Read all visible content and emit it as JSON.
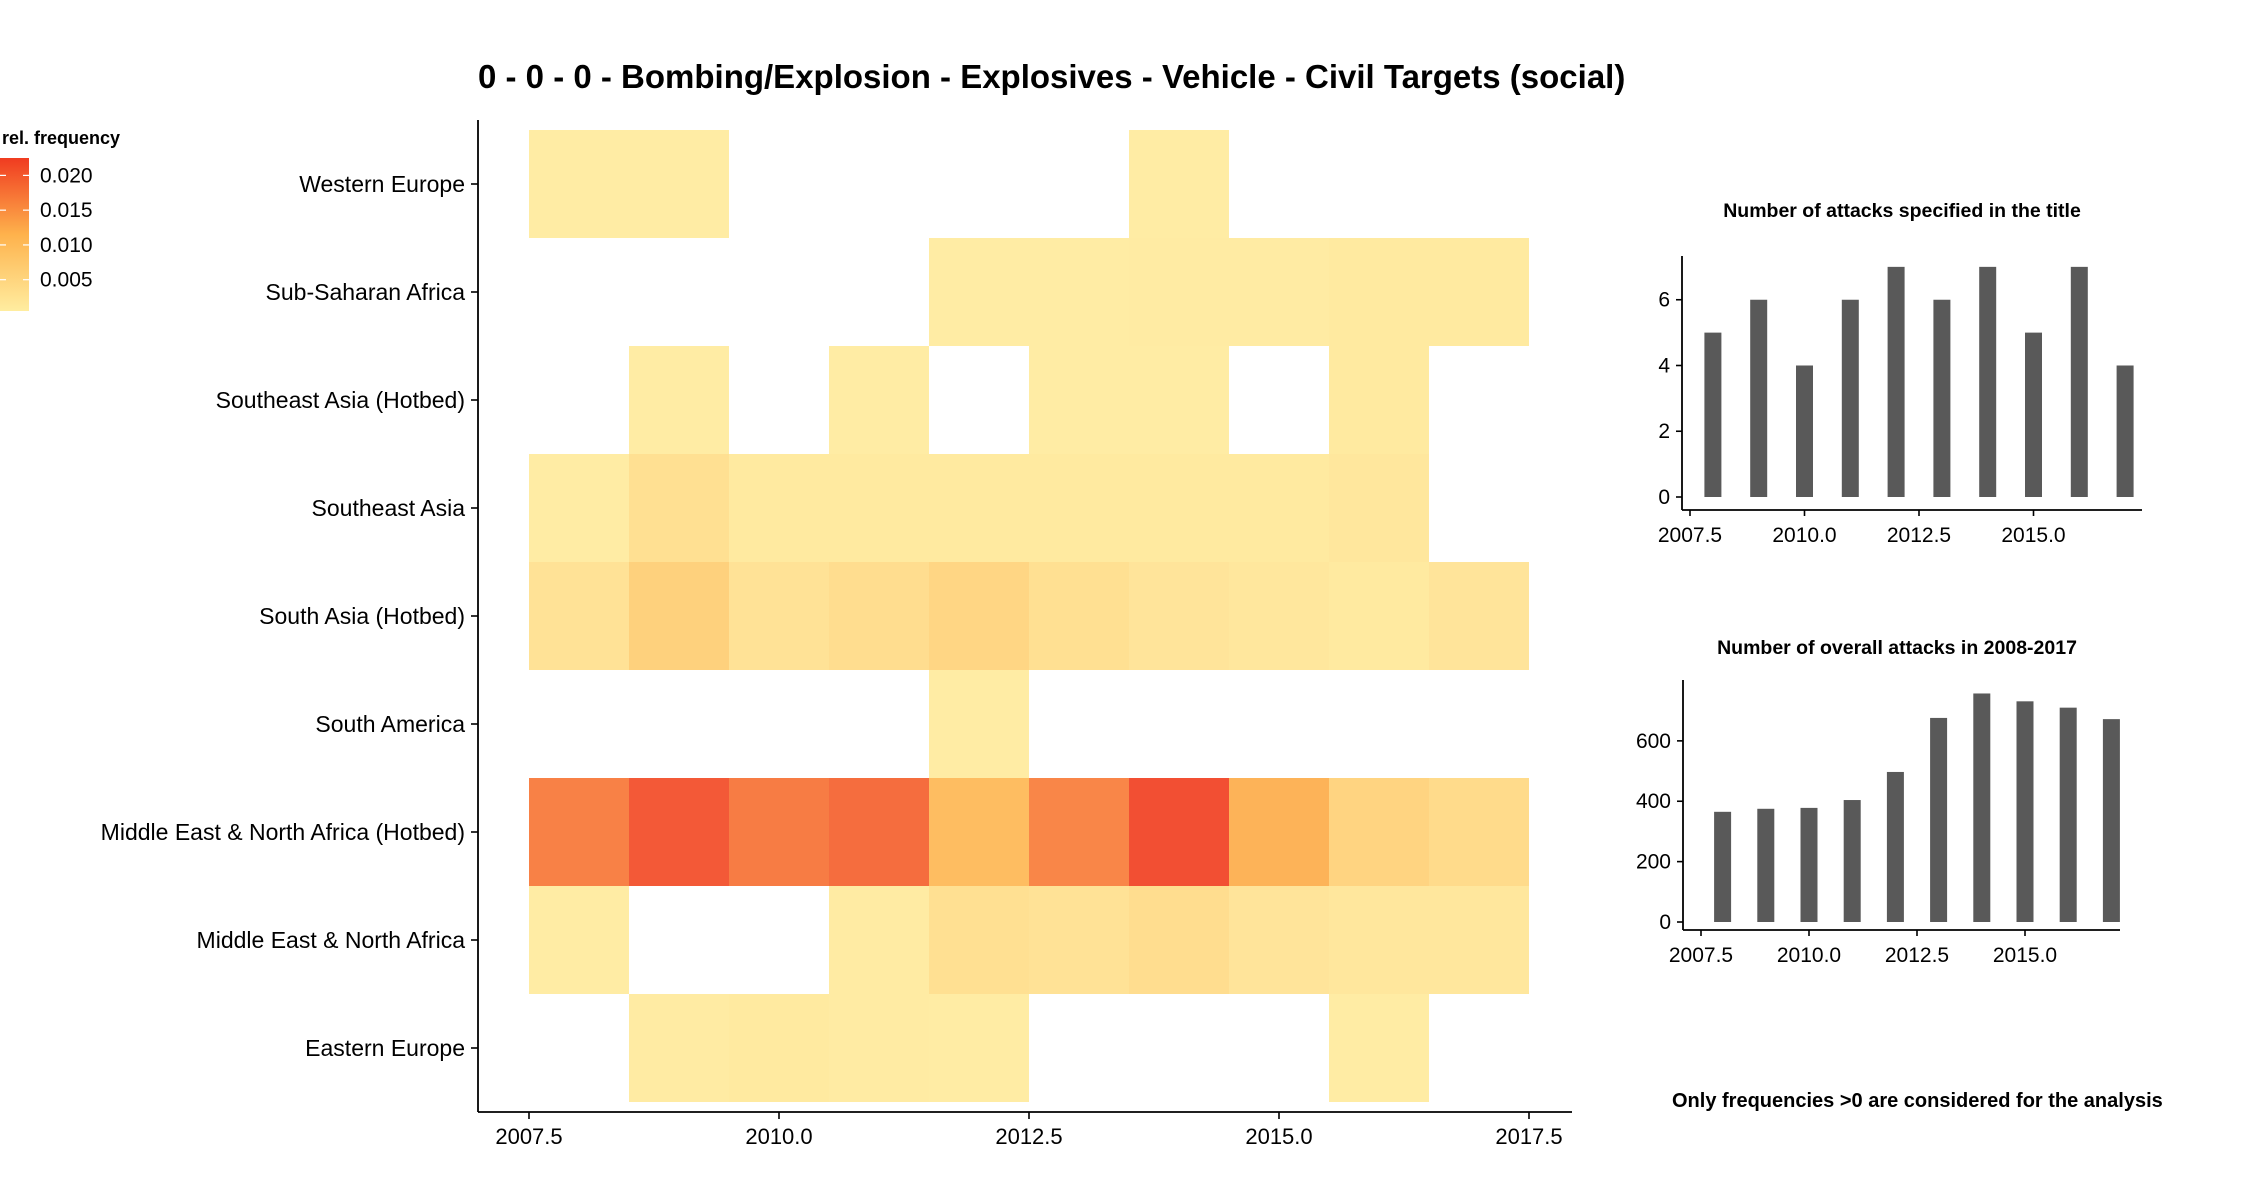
{
  "title": "0 - 0 - 0 - Bombing/Explosion - Explosives - Vehicle - Civil Targets (social)",
  "footnote": "Only frequencies >0 are considered for the analysis",
  "colors": {
    "low": "#FFEDA0",
    "mid": "#FEB24C",
    "high": "#F03B20",
    "bar": "#595959",
    "axis": "#000000"
  },
  "chart_data": [
    {
      "type": "heatmap",
      "title": "0 - 0 - 0 - Bombing/Explosion - Explosives - Vehicle - Civil Targets (social)",
      "x": [
        2008,
        2009,
        2010,
        2011,
        2012,
        2013,
        2014,
        2015,
        2016,
        2017
      ],
      "x_ticks": [
        2007.5,
        2010.0,
        2012.5,
        2015.0,
        2017.5
      ],
      "x_tick_labels": [
        "2007.5",
        "2010.0",
        "2012.5",
        "2015.0",
        "2017.5"
      ],
      "xlim": [
        2007.5,
        2017.5
      ],
      "y_categories": [
        "Western Europe",
        "Sub-Saharan Africa",
        "Southeast Asia (Hotbed)",
        "Southeast Asia",
        "South Asia (Hotbed)",
        "South America",
        "Middle East & North Africa (Hotbed)",
        "Middle East & North Africa",
        "Eastern Europe"
      ],
      "legend": {
        "title": "rel. frequency",
        "ticks": [
          0.02,
          0.015,
          0.01,
          0.005
        ],
        "tick_labels": [
          "0.020",
          "0.015",
          "0.010",
          "0.005"
        ],
        "range": [
          0.0005,
          0.0225
        ]
      },
      "values": [
        [
          0.001,
          0.001,
          null,
          null,
          null,
          null,
          0.001,
          null,
          null,
          null
        ],
        [
          null,
          null,
          null,
          null,
          0.001,
          0.001,
          0.0012,
          0.0012,
          0.0015,
          0.0015
        ],
        [
          null,
          0.001,
          null,
          0.001,
          null,
          0.001,
          0.001,
          null,
          0.0015,
          null
        ],
        [
          0.001,
          0.0035,
          0.0015,
          0.0015,
          0.0015,
          0.0015,
          0.0015,
          0.0015,
          0.002,
          null
        ],
        [
          0.003,
          0.0065,
          0.003,
          0.004,
          0.0055,
          0.0035,
          0.0025,
          0.002,
          0.0015,
          0.0025
        ],
        [
          null,
          null,
          null,
          null,
          0.001,
          null,
          null,
          null,
          null,
          null
        ],
        [
          0.017,
          0.021,
          0.0175,
          0.019,
          0.0105,
          0.0165,
          0.022,
          0.012,
          0.006,
          0.0045
        ],
        [
          0.001,
          null,
          null,
          0.0012,
          0.0035,
          0.003,
          0.004,
          0.0025,
          0.002,
          0.002
        ],
        [
          null,
          0.0012,
          0.0015,
          0.0012,
          0.001,
          null,
          null,
          null,
          0.001,
          null
        ]
      ]
    },
    {
      "type": "bar",
      "title": "Number of attacks specified in the title",
      "x": [
        2008,
        2009,
        2010,
        2011,
        2012,
        2013,
        2014,
        2015,
        2016,
        2017
      ],
      "values": [
        5,
        6,
        4,
        6,
        7,
        6,
        7,
        5,
        7,
        4
      ],
      "xlim": [
        2007.5,
        2017.5
      ],
      "ylim": [
        0,
        7.3
      ],
      "x_ticks": [
        2007.5,
        2010.0,
        2012.5,
        2015.0
      ],
      "x_tick_labels": [
        "2007.5",
        "2010.0",
        "2012.5",
        "2015.0"
      ],
      "y_ticks": [
        0,
        2,
        4,
        6
      ],
      "y_tick_labels": [
        "0",
        "2",
        "4",
        "6"
      ]
    },
    {
      "type": "bar",
      "title": "Number of overall attacks in 2008-2017",
      "x": [
        2008,
        2009,
        2010,
        2011,
        2012,
        2013,
        2014,
        2015,
        2016,
        2017
      ],
      "values": [
        365,
        375,
        378,
        404,
        497,
        676,
        757,
        731,
        710,
        672
      ],
      "xlim": [
        2007.5,
        2017.5
      ],
      "ylim": [
        0,
        795
      ],
      "x_ticks": [
        2007.5,
        2010.0,
        2012.5,
        2015.0
      ],
      "x_tick_labels": [
        "2007.5",
        "2010.0",
        "2012.5",
        "2015.0"
      ],
      "y_ticks": [
        0,
        200,
        400,
        600
      ],
      "y_tick_labels": [
        "0",
        "200",
        "400",
        "600"
      ]
    }
  ]
}
